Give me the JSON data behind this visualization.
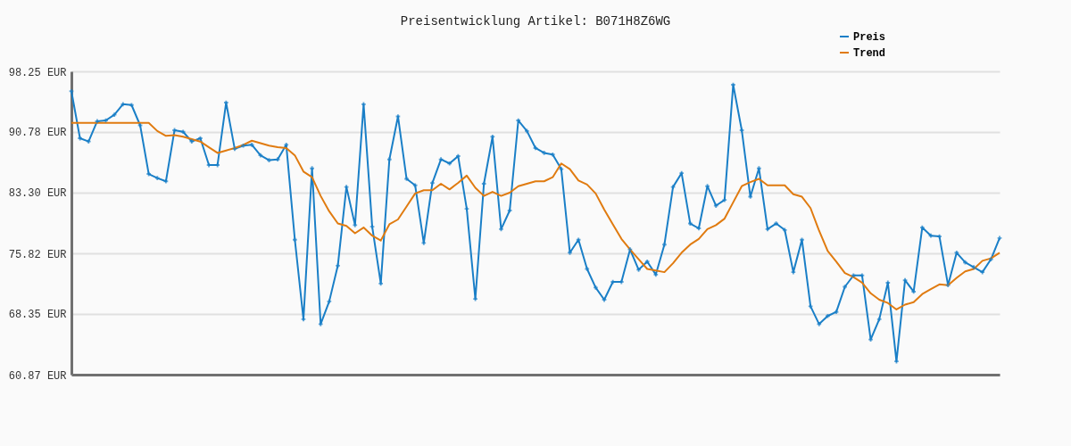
{
  "chart_data": {
    "type": "line",
    "title": "Preisentwicklung Artikel: B071H8Z6WG",
    "categories": [
      null,
      null,
      null,
      null,
      null,
      null,
      null,
      null,
      null,
      null,
      null,
      null,
      null,
      null,
      null,
      null,
      null,
      null,
      null,
      null,
      null,
      null,
      null,
      null,
      null,
      null,
      null,
      null,
      null,
      null,
      null,
      null,
      null,
      null,
      null,
      null,
      null,
      null,
      null,
      null,
      null,
      null,
      null,
      null,
      null,
      null,
      null,
      null,
      null,
      null,
      null,
      null,
      null,
      null,
      null,
      null,
      null,
      null,
      null,
      null,
      null,
      null,
      null,
      null,
      null,
      null,
      null,
      null,
      null,
      null,
      null,
      null,
      null,
      null,
      null,
      null,
      null,
      null,
      null,
      null,
      null,
      null,
      null,
      null,
      null,
      null,
      null,
      null,
      null,
      null,
      null,
      null,
      null,
      null,
      null,
      null,
      null,
      null,
      null,
      null,
      null,
      null,
      null,
      null,
      null,
      null,
      null,
      null,
      null
    ],
    "series": [
      {
        "name": "Preis",
        "color": "#1a7fc7",
        "marker": "cross",
        "values": [
          95.8,
          90.0,
          89.6,
          92.1,
          92.2,
          92.9,
          94.2,
          94.1,
          91.6,
          85.6,
          85.1,
          84.7,
          91.0,
          90.8,
          89.6,
          90.0,
          86.7,
          86.7,
          94.4,
          88.7,
          89.1,
          89.2,
          87.9,
          87.3,
          87.4,
          89.2,
          77.5,
          67.7,
          86.3,
          67.1,
          69.9,
          74.3,
          84.0,
          79.3,
          94.2,
          79.1,
          72.1,
          87.4,
          92.7,
          85.0,
          84.2,
          77.1,
          84.5,
          87.4,
          86.9,
          87.8,
          81.3,
          70.2,
          84.4,
          90.2,
          78.8,
          81.1,
          92.2,
          90.9,
          88.8,
          88.2,
          88.0,
          86.2,
          75.9,
          77.5,
          73.9,
          71.6,
          70.1,
          72.3,
          72.3,
          76.3,
          73.8,
          74.8,
          73.2,
          76.9,
          84.0,
          85.7,
          79.5,
          78.9,
          84.1,
          81.7,
          82.4,
          96.6,
          91.0,
          82.8,
          86.3,
          78.8,
          79.5,
          78.7,
          73.5,
          77.5,
          69.3,
          67.1,
          68.1,
          68.6,
          71.7,
          73.1,
          73.1,
          65.2,
          67.7,
          72.2,
          62.5,
          72.5,
          71.1,
          79.0,
          78.0,
          77.9,
          71.9,
          75.9,
          74.7,
          74.1,
          73.5,
          75.1,
          77.7
        ]
      },
      {
        "name": "Trend",
        "color": "#e07b10",
        "marker": "none",
        "values": [
          91.9,
          91.9,
          91.9,
          91.9,
          91.9,
          91.9,
          91.9,
          91.9,
          91.9,
          91.9,
          90.9,
          90.3,
          90.4,
          90.2,
          89.9,
          89.6,
          88.9,
          88.2,
          88.5,
          88.8,
          89.2,
          89.7,
          89.4,
          89.1,
          88.9,
          88.8,
          87.9,
          85.9,
          85.2,
          82.9,
          81.0,
          79.5,
          79.2,
          78.3,
          79.0,
          78.0,
          77.4,
          79.4,
          80.0,
          81.6,
          83.2,
          83.6,
          83.6,
          84.4,
          83.7,
          84.5,
          85.4,
          83.9,
          82.9,
          83.4,
          82.9,
          83.3,
          84.1,
          84.4,
          84.7,
          84.7,
          85.2,
          86.9,
          86.2,
          84.8,
          84.3,
          83.2,
          81.2,
          79.4,
          77.6,
          76.3,
          75.1,
          73.9,
          73.7,
          73.5,
          74.6,
          75.9,
          76.9,
          77.6,
          78.8,
          79.3,
          80.1,
          82.1,
          84.1,
          84.6,
          85.0,
          84.2,
          84.2,
          84.2,
          83.1,
          82.8,
          81.4,
          78.6,
          76.1,
          74.8,
          73.4,
          72.9,
          72.2,
          70.9,
          70.1,
          69.7,
          68.9,
          69.5,
          69.8,
          70.8,
          71.4,
          72.0,
          71.9,
          72.8,
          73.6,
          73.9,
          74.9,
          75.2,
          75.9
        ]
      }
    ],
    "ylim": [
      60.87,
      98.25
    ],
    "yticks": [
      {
        "value": 60.87,
        "label": "60.87 EUR"
      },
      {
        "value": 68.35,
        "label": "68.35 EUR"
      },
      {
        "value": 75.82,
        "label": "75.82 EUR"
      },
      {
        "value": 83.3,
        "label": "83.30 EUR"
      },
      {
        "value": 90.78,
        "label": "90.78 EUR"
      },
      {
        "value": 98.25,
        "label": "98.25 EUR"
      }
    ],
    "grid": "y",
    "legend": "top right",
    "line_style": "solid"
  }
}
